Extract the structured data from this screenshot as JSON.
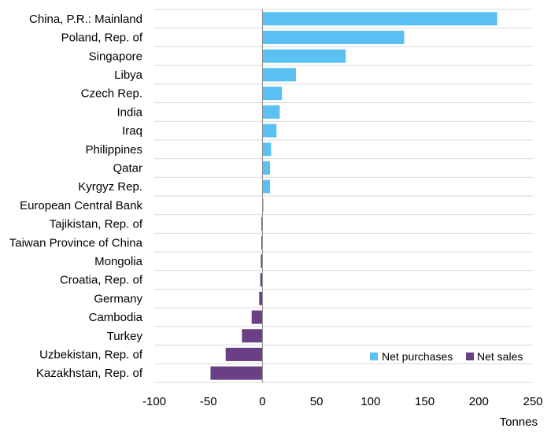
{
  "chart_data": {
    "type": "bar",
    "orientation": "horizontal",
    "title": "",
    "xlabel": "Tonnes",
    "ylabel": "",
    "xlim": [
      -100,
      250
    ],
    "xticks": [
      -100,
      -50,
      0,
      50,
      100,
      150,
      200,
      250
    ],
    "grid": "horizontal",
    "legend_position": "bottom-right",
    "categories": [
      "China, P.R.: Mainland",
      "Poland, Rep. of",
      "Singapore",
      "Libya",
      "Czech Rep.",
      "India",
      "Iraq",
      "Philippines",
      "Qatar",
      "Kyrgyz Rep.",
      "European Central Bank",
      "Tajikistan, Rep. of",
      "Taiwan Province of China",
      "Mongolia",
      "Croatia, Rep. of",
      "Germany",
      "Cambodia",
      "Turkey",
      "Uzbekistan, Rep. of",
      "Kazakhstan, Rep. of"
    ],
    "values": [
      217,
      131,
      77,
      31,
      18,
      16,
      13,
      8,
      7,
      7,
      1,
      -1,
      -1,
      -1.5,
      -2,
      -3,
      -10,
      -19,
      -34,
      -48
    ],
    "series": [
      {
        "name": "Net purchases",
        "color": "#5bc0f2"
      },
      {
        "name": "Net sales",
        "color": "#6b3f86"
      }
    ]
  },
  "colors": {
    "grid": "#d9d9d9",
    "axis": "#8c8c8c"
  }
}
